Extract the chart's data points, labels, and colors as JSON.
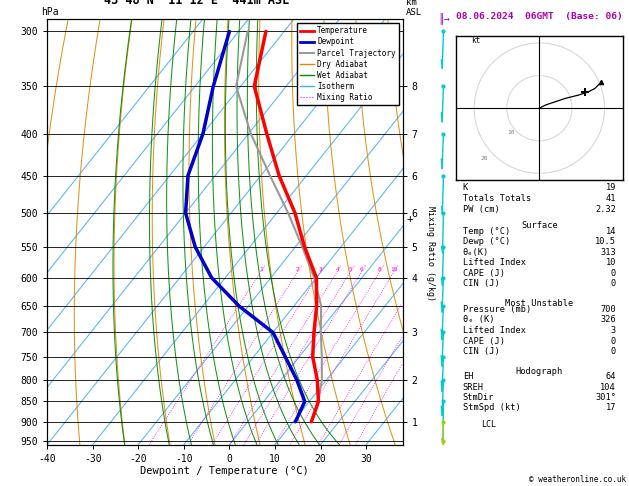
{
  "title_left": "43°48'N  11°12'E  441m ASL",
  "title_right": "08.06.2024  06GMT  (Base: 06)",
  "xlabel": "Dewpoint / Temperature (°C)",
  "pmin": 290,
  "pmax": 960,
  "tmin": -40,
  "tmax": 38,
  "pressure_labels": [
    300,
    350,
    400,
    450,
    500,
    550,
    600,
    650,
    700,
    750,
    800,
    850,
    900,
    950
  ],
  "temp_ticks": [
    -40,
    -30,
    -20,
    -10,
    0,
    10,
    20,
    30
  ],
  "km_map_pressures": [
    350,
    400,
    450,
    500,
    550,
    600,
    700,
    800,
    900
  ],
  "km_map_values": [
    8,
    7,
    6,
    6,
    5,
    4,
    3,
    2,
    1
  ],
  "dry_adiabat_thetas": [
    -40,
    -30,
    -20,
    -10,
    0,
    10,
    20,
    30,
    40,
    50,
    60,
    70,
    80,
    90,
    100,
    110
  ],
  "moist_T0s": [
    -20,
    -10,
    -5,
    0,
    5,
    10,
    15,
    20,
    25,
    30
  ],
  "mixing_ratios": [
    1,
    2,
    3,
    4,
    5,
    6,
    8,
    10,
    15,
    20,
    25
  ],
  "temp_profile_T": [
    14,
    12,
    8,
    3,
    -1,
    -5,
    -10,
    -18,
    -26,
    -36,
    -46,
    -57,
    -64
  ],
  "temp_profile_P": [
    900,
    850,
    800,
    750,
    700,
    650,
    600,
    550,
    500,
    450,
    400,
    350,
    300
  ],
  "dewp_profile_T": [
    10.5,
    9.0,
    3.5,
    -3.0,
    -10.0,
    -22.0,
    -33.0,
    -42.0,
    -50.0,
    -56.0,
    -60.0,
    -66.0,
    -72.0
  ],
  "dewp_profile_P": [
    900,
    850,
    800,
    750,
    700,
    650,
    600,
    550,
    500,
    450,
    400,
    350,
    300
  ],
  "parcel_T": [
    14,
    12,
    9,
    5,
    0.5,
    -4.0,
    -10.5,
    -18.5,
    -27.5,
    -38.0,
    -49.5,
    -61.0,
    -68.0
  ],
  "parcel_P": [
    900,
    850,
    800,
    750,
    700,
    650,
    600,
    550,
    500,
    450,
    400,
    350,
    300
  ],
  "col_temp": "#ff0000",
  "col_dewp": "#0000cc",
  "col_parcel": "#999999",
  "col_dry": "#dd8800",
  "col_wet": "#008800",
  "col_iso": "#44aaff",
  "col_mix": "#ff00ff",
  "lcl_pressure": 906,
  "wind_pressures": [
    300,
    350,
    400,
    450,
    500,
    550,
    600,
    650,
    700,
    750,
    800,
    850,
    900,
    950
  ],
  "wind_u": [
    -3,
    -4,
    -5,
    -3,
    -2,
    -2,
    -3,
    -4,
    -4,
    -3,
    -2,
    -1,
    -1,
    -2
  ],
  "wind_v": [
    5,
    6,
    7,
    6,
    5,
    4,
    4,
    5,
    5,
    4,
    3,
    4,
    5,
    4
  ],
  "stats_K": 19,
  "stats_TT": 41,
  "stats_PW": "2.32",
  "stats_surf_T": 14,
  "stats_surf_Td": "10.5",
  "stats_surf_theta_e": 313,
  "stats_surf_LI": 10,
  "stats_surf_CAPE": 0,
  "stats_surf_CIN": 0,
  "stats_mu_P": 700,
  "stats_mu_theta_e": 326,
  "stats_mu_LI": 3,
  "stats_mu_CAPE": 0,
  "stats_mu_CIN": 0,
  "stats_EH": 64,
  "stats_SREH": 104,
  "stats_StmDir": "301°",
  "stats_StmSpd": 17
}
